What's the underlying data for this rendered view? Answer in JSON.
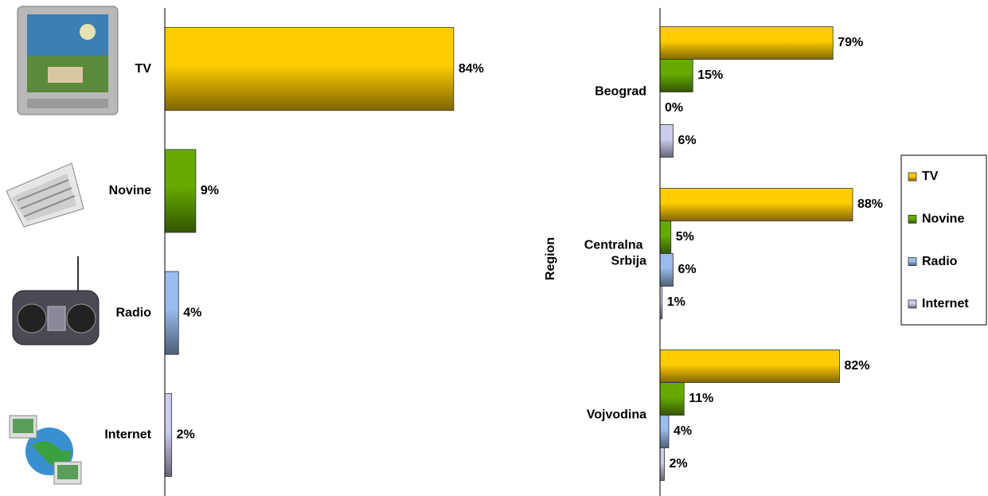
{
  "chart_data": [
    {
      "type": "bar",
      "orientation": "horizontal",
      "categories": [
        "TV",
        "Novine",
        "Radio",
        "Internet"
      ],
      "values": [
        84,
        9,
        4,
        2
      ],
      "value_labels": [
        "84%",
        "9%",
        "4%",
        "2%"
      ],
      "colors": [
        "#ffcc00",
        "#66aa00",
        "#99bbee",
        "#ccccee"
      ],
      "xlim": [
        0,
        100
      ]
    },
    {
      "type": "bar",
      "orientation": "horizontal",
      "y_label": "Region",
      "categories": [
        "Beograd",
        "Centralna Srbija",
        "Vojvodina"
      ],
      "series": [
        {
          "name": "TV",
          "color": "#ffcc00",
          "values": [
            79,
            88,
            82
          ],
          "value_labels": [
            "79%",
            "88%",
            "82%"
          ]
        },
        {
          "name": "Novine",
          "color": "#66aa00",
          "values": [
            15,
            5,
            11
          ],
          "value_labels": [
            "15%",
            "5%",
            "11%"
          ]
        },
        {
          "name": "Radio",
          "color": "#99bbee",
          "values": [
            0,
            6,
            4
          ],
          "value_labels": [
            "0%",
            "6%",
            "4%"
          ]
        },
        {
          "name": "Internet",
          "color": "#ccccee",
          "values": [
            6,
            1,
            2
          ],
          "value_labels": [
            "6%",
            "1%",
            "2%"
          ]
        }
      ],
      "xlim": [
        0,
        100
      ],
      "legend": "right"
    }
  ]
}
